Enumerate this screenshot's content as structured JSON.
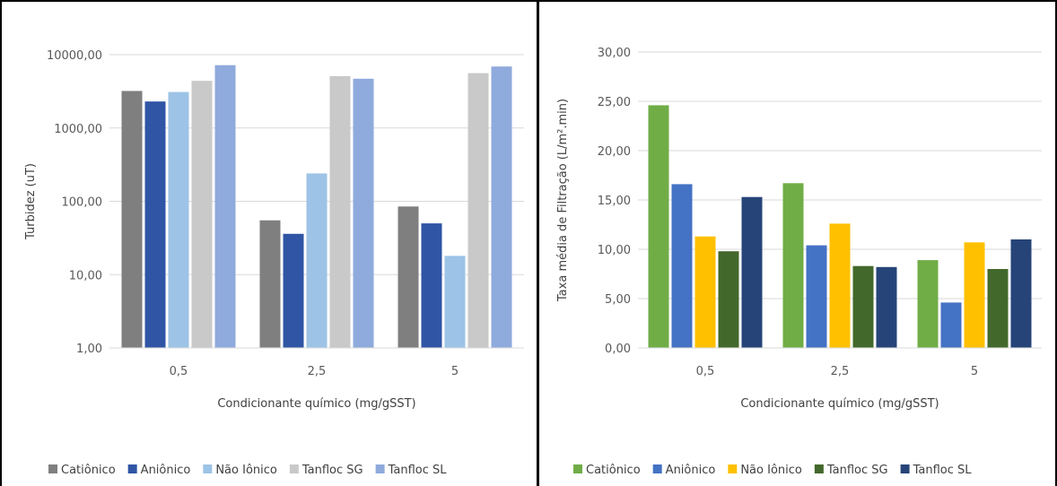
{
  "chart_data": [
    {
      "type": "bar",
      "scale": "log",
      "categories": [
        "0,5",
        "2,5",
        "5"
      ],
      "series": [
        {
          "name": "Catiônico",
          "color": "#7f7f7f",
          "values": [
            3200,
            55,
            85
          ]
        },
        {
          "name": "Aniônico",
          "color": "#2f55a4",
          "values": [
            2300,
            36,
            50
          ]
        },
        {
          "name": "Não Iônico",
          "color": "#9dc3e6",
          "values": [
            3100,
            240,
            18
          ]
        },
        {
          "name": "Tanfloc SG",
          "color": "#c9c9c9",
          "values": [
            4400,
            5100,
            5600
          ]
        },
        {
          "name": "Tanfloc SL",
          "color": "#8faadc",
          "values": [
            7200,
            4700,
            6900
          ]
        }
      ],
      "xlabel": "Condicionante químico  (mg/gSST)",
      "ylabel": "Turbidez (uT)",
      "ylim": [
        1,
        10000
      ],
      "yticks": [
        "1,00",
        "10,00",
        "100,00",
        "1000,00",
        "10000,00"
      ],
      "grid": true,
      "legend": "bottom"
    },
    {
      "type": "bar",
      "scale": "linear",
      "categories": [
        "0,5",
        "2,5",
        "5"
      ],
      "series": [
        {
          "name": "Catiônico",
          "color": "#70ad47",
          "values": [
            24.6,
            16.7,
            8.9
          ]
        },
        {
          "name": "Aniônico",
          "color": "#4472c4",
          "values": [
            16.6,
            10.4,
            4.6
          ]
        },
        {
          "name": "Não Iônico",
          "color": "#ffc000",
          "values": [
            11.3,
            12.6,
            10.7
          ]
        },
        {
          "name": "Tanfloc SG",
          "color": "#43682b",
          "values": [
            9.8,
            8.3,
            8.0
          ]
        },
        {
          "name": "Tanfloc SL",
          "color": "#264478",
          "values": [
            15.3,
            8.2,
            11.0
          ]
        }
      ],
      "xlabel": "Condicionante químico  (mg/gSST)",
      "ylabel": "Taxa média de Filtração (L/m².min)",
      "ylim": [
        0,
        30
      ],
      "yticks": [
        "0,00",
        "5,00",
        "10,00",
        "15,00",
        "20,00",
        "25,00",
        "30,00"
      ],
      "grid": true,
      "legend": "bottom"
    }
  ]
}
